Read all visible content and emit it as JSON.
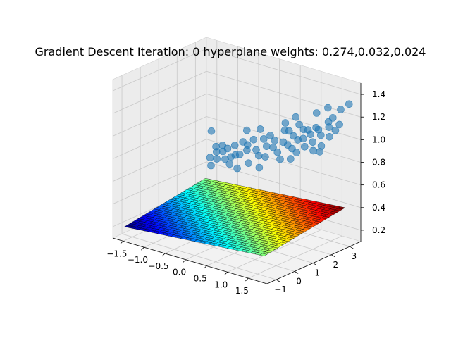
{
  "chart_data": {
    "type": "scatter",
    "title": "Gradient Descent Iteration: 0 hyperplane weights: 0.274,0.032,0.024",
    "weights": [
      0.274,
      0.032,
      0.024
    ],
    "xlim": [
      -1.75,
      1.95
    ],
    "ylim": [
      -1.5,
      3.6
    ],
    "zlim": [
      0.1,
      1.5
    ],
    "x_ticks": [
      -1.5,
      -1.0,
      -0.5,
      0.0,
      0.5,
      1.0,
      1.5
    ],
    "x_tick_labels": [
      "−1.5",
      "−1.0",
      "−0.5",
      "0.0",
      "0.5",
      "1.0",
      "1.5"
    ],
    "y_ticks": [
      -1,
      0,
      1,
      2,
      3
    ],
    "y_tick_labels": [
      "−1",
      "0",
      "1",
      "2",
      "3"
    ],
    "z_ticks": [
      0.2,
      0.4,
      0.6,
      0.8,
      1.0,
      1.2,
      1.4
    ],
    "z_tick_labels": [
      "0.2",
      "0.4",
      "0.6",
      "0.8",
      "1.0",
      "1.2",
      "1.4"
    ],
    "grid": true,
    "surface": {
      "x_range": [
        -1.6,
        1.75
      ],
      "y_range": [
        -1.2,
        3.2
      ],
      "colormap": "jet",
      "edgecolor": "#000000"
    },
    "scatter_color": "#1f77b4",
    "points": [
      [
        -1.4,
        3.0,
        0.52
      ],
      [
        -1.3,
        3.1,
        0.62
      ],
      [
        -1.2,
        2.9,
        0.6
      ],
      [
        -1.15,
        2.8,
        0.55
      ],
      [
        -1.1,
        3.0,
        0.66
      ],
      [
        -1.05,
        2.9,
        0.62
      ],
      [
        -1.0,
        3.05,
        0.64
      ],
      [
        -0.95,
        2.8,
        0.57
      ],
      [
        -0.9,
        3.0,
        0.58
      ],
      [
        -0.85,
        3.1,
        0.68
      ],
      [
        -0.8,
        2.7,
        0.55
      ],
      [
        -0.75,
        2.9,
        0.62
      ],
      [
        -0.7,
        3.2,
        0.72
      ],
      [
        -0.6,
        2.8,
        0.65
      ],
      [
        -0.5,
        3.0,
        0.73
      ],
      [
        -0.45,
        2.85,
        0.7
      ],
      [
        -0.4,
        3.1,
        0.78
      ],
      [
        -0.3,
        2.6,
        0.62
      ],
      [
        -0.25,
        2.9,
        0.72
      ],
      [
        -0.2,
        3.2,
        0.8
      ],
      [
        -0.1,
        2.7,
        0.7
      ],
      [
        0.0,
        2.9,
        0.78
      ],
      [
        0.0,
        3.1,
        0.86
      ],
      [
        0.1,
        2.6,
        0.72
      ],
      [
        0.15,
        3.0,
        0.84
      ],
      [
        0.2,
        2.8,
        0.8
      ],
      [
        0.3,
        3.2,
        0.93
      ],
      [
        0.35,
        2.7,
        0.78
      ],
      [
        0.4,
        2.9,
        0.86
      ],
      [
        0.45,
        3.1,
        0.95
      ],
      [
        0.5,
        2.5,
        0.75
      ],
      [
        0.55,
        2.8,
        0.86
      ],
      [
        0.6,
        3.0,
        0.93
      ],
      [
        0.65,
        3.2,
        1.02
      ],
      [
        0.7,
        2.7,
        0.85
      ],
      [
        0.75,
        2.9,
        0.92
      ],
      [
        0.8,
        3.1,
        1.0
      ],
      [
        0.85,
        2.6,
        0.84
      ],
      [
        0.9,
        2.85,
        0.95
      ],
      [
        0.95,
        3.0,
        1.02
      ],
      [
        1.0,
        2.7,
        0.9
      ],
      [
        1.05,
        2.9,
        1.0
      ],
      [
        1.1,
        3.1,
        1.05
      ],
      [
        1.15,
        2.8,
        0.95
      ],
      [
        1.2,
        3.0,
        1.05
      ],
      [
        1.25,
        2.6,
        0.9
      ],
      [
        1.3,
        2.9,
        1.02
      ],
      [
        1.35,
        3.2,
        1.12
      ],
      [
        1.4,
        2.7,
        0.95
      ],
      [
        1.45,
        3.0,
        1.1
      ],
      [
        1.5,
        3.1,
        1.18
      ],
      [
        1.55,
        2.8,
        1.04
      ],
      [
        1.6,
        3.3,
        1.25
      ],
      [
        1.65,
        2.9,
        1.1
      ],
      [
        1.7,
        3.0,
        1.15
      ],
      [
        1.8,
        3.3,
        1.32
      ],
      [
        -1.5,
        3.3,
        0.72
      ],
      [
        -0.65,
        3.3,
        0.82
      ],
      [
        0.25,
        3.35,
        0.98
      ],
      [
        1.0,
        3.35,
        1.15
      ],
      [
        -1.2,
        2.6,
        0.5
      ],
      [
        -0.55,
        2.55,
        0.55
      ],
      [
        0.0,
        2.5,
        0.62
      ],
      [
        0.75,
        2.5,
        0.78
      ],
      [
        1.45,
        2.5,
        0.92
      ],
      [
        -0.35,
        3.35,
        0.86
      ],
      [
        0.5,
        3.35,
        1.06
      ],
      [
        1.25,
        3.4,
        1.22
      ]
    ]
  }
}
